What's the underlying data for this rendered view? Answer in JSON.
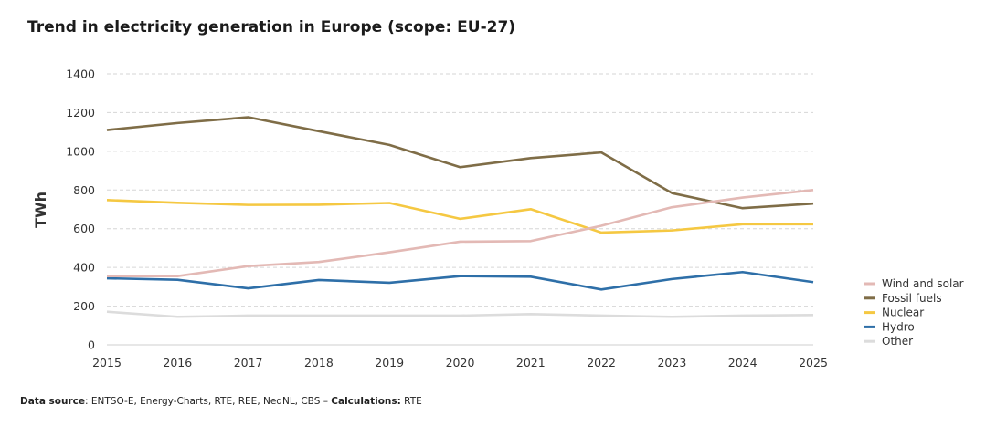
{
  "chart_data": {
    "type": "line",
    "title": "Trend in electricity generation in Europe (scope: EU-27)",
    "xlabel": "",
    "ylabel": "TWh",
    "ylim": [
      0,
      1400
    ],
    "yticks": [
      0,
      200,
      400,
      600,
      800,
      1000,
      1200,
      1400
    ],
    "grid": true,
    "legend_position": "right",
    "categories": [
      "2015",
      "2016",
      "2017",
      "2018",
      "2019",
      "2020",
      "2021",
      "2022",
      "2023",
      "2024",
      "2025"
    ],
    "series": [
      {
        "name": "Wind and solar",
        "color": "#e3b9b5",
        "values": [
          355,
          355,
          407,
          428,
          478,
          533,
          536,
          615,
          711,
          761,
          800
        ]
      },
      {
        "name": "Fossil fuels",
        "color": "#7f6d47",
        "values": [
          1110,
          1146,
          1176,
          1104,
          1033,
          918,
          965,
          994,
          784,
          706,
          730
        ]
      },
      {
        "name": "Nuclear",
        "color": "#f5c842",
        "values": [
          748,
          734,
          723,
          724,
          733,
          651,
          701,
          580,
          591,
          623,
          623
        ]
      },
      {
        "name": "Hydro",
        "color": "#2e6fa8",
        "values": [
          344,
          336,
          292,
          335,
          321,
          355,
          352,
          286,
          340,
          376,
          324
        ]
      },
      {
        "name": "Other",
        "color": "#dcdcdc",
        "values": [
          171,
          145,
          151,
          151,
          151,
          151,
          159,
          151,
          145,
          151,
          154
        ]
      }
    ]
  },
  "footer": {
    "source_label": "Data source",
    "source_text": ": ENTSO-E, Energy-Charts, RTE, REE, NedNL, CBS – ",
    "calc_label": "Calculations:",
    "calc_text": " RTE"
  }
}
